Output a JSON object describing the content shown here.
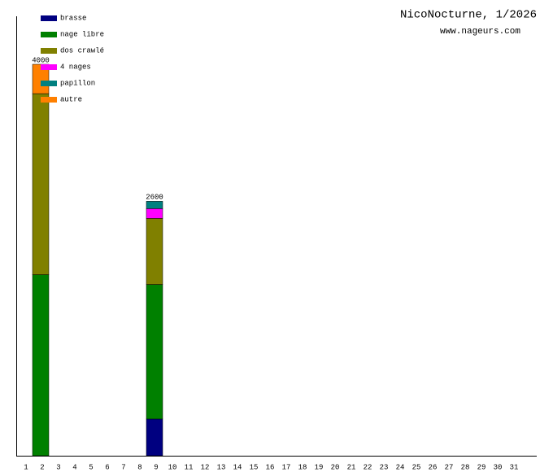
{
  "chart_data": {
    "type": "stacked-bar",
    "title": "NicoNocturne, 1/2026",
    "subtitle": "www.nageurs.com",
    "categories": [
      "1",
      "2",
      "3",
      "4",
      "5",
      "6",
      "7",
      "8",
      "9",
      "10",
      "11",
      "12",
      "13",
      "14",
      "15",
      "16",
      "17",
      "18",
      "19",
      "20",
      "21",
      "22",
      "23",
      "24",
      "25",
      "26",
      "27",
      "28",
      "29",
      "30",
      "31"
    ],
    "series": [
      {
        "name": "brasse",
        "color": "#000080",
        "values": [
          0,
          0,
          0,
          0,
          0,
          0,
          0,
          0,
          375,
          0,
          0,
          0,
          0,
          0,
          0,
          0,
          0,
          0,
          0,
          0,
          0,
          0,
          0,
          0,
          0,
          0,
          0,
          0,
          0,
          0,
          0
        ]
      },
      {
        "name": "nage libre",
        "color": "#008000",
        "values": [
          0,
          1850,
          0,
          0,
          0,
          0,
          0,
          0,
          1375,
          0,
          0,
          0,
          0,
          0,
          0,
          0,
          0,
          0,
          0,
          0,
          0,
          0,
          0,
          0,
          0,
          0,
          0,
          0,
          0,
          0,
          0
        ]
      },
      {
        "name": "dos crawlé",
        "color": "#808000",
        "values": [
          0,
          1850,
          0,
          0,
          0,
          0,
          0,
          0,
          675,
          0,
          0,
          0,
          0,
          0,
          0,
          0,
          0,
          0,
          0,
          0,
          0,
          0,
          0,
          0,
          0,
          0,
          0,
          0,
          0,
          0,
          0
        ]
      },
      {
        "name": "4 nages",
        "color": "#ff00ff",
        "values": [
          0,
          0,
          0,
          0,
          0,
          0,
          0,
          0,
          100,
          0,
          0,
          0,
          0,
          0,
          0,
          0,
          0,
          0,
          0,
          0,
          0,
          0,
          0,
          0,
          0,
          0,
          0,
          0,
          0,
          0,
          0
        ]
      },
      {
        "name": "papillon",
        "color": "#008080",
        "values": [
          0,
          0,
          0,
          0,
          0,
          0,
          0,
          0,
          75,
          0,
          0,
          0,
          0,
          0,
          0,
          0,
          0,
          0,
          0,
          0,
          0,
          0,
          0,
          0,
          0,
          0,
          0,
          0,
          0,
          0,
          0
        ]
      },
      {
        "name": "autre",
        "color": "#ff8000",
        "values": [
          0,
          300,
          0,
          0,
          0,
          0,
          0,
          0,
          0,
          0,
          0,
          0,
          0,
          0,
          0,
          0,
          0,
          0,
          0,
          0,
          0,
          0,
          0,
          0,
          0,
          0,
          0,
          0,
          0,
          0,
          0
        ]
      }
    ],
    "totals": [
      null,
      4000,
      null,
      null,
      null,
      null,
      null,
      null,
      2600,
      null,
      null,
      null,
      null,
      null,
      null,
      null,
      null,
      null,
      null,
      null,
      null,
      null,
      null,
      null,
      null,
      null,
      null,
      null,
      null,
      null,
      null
    ],
    "ylim": [
      0,
      4000
    ]
  }
}
